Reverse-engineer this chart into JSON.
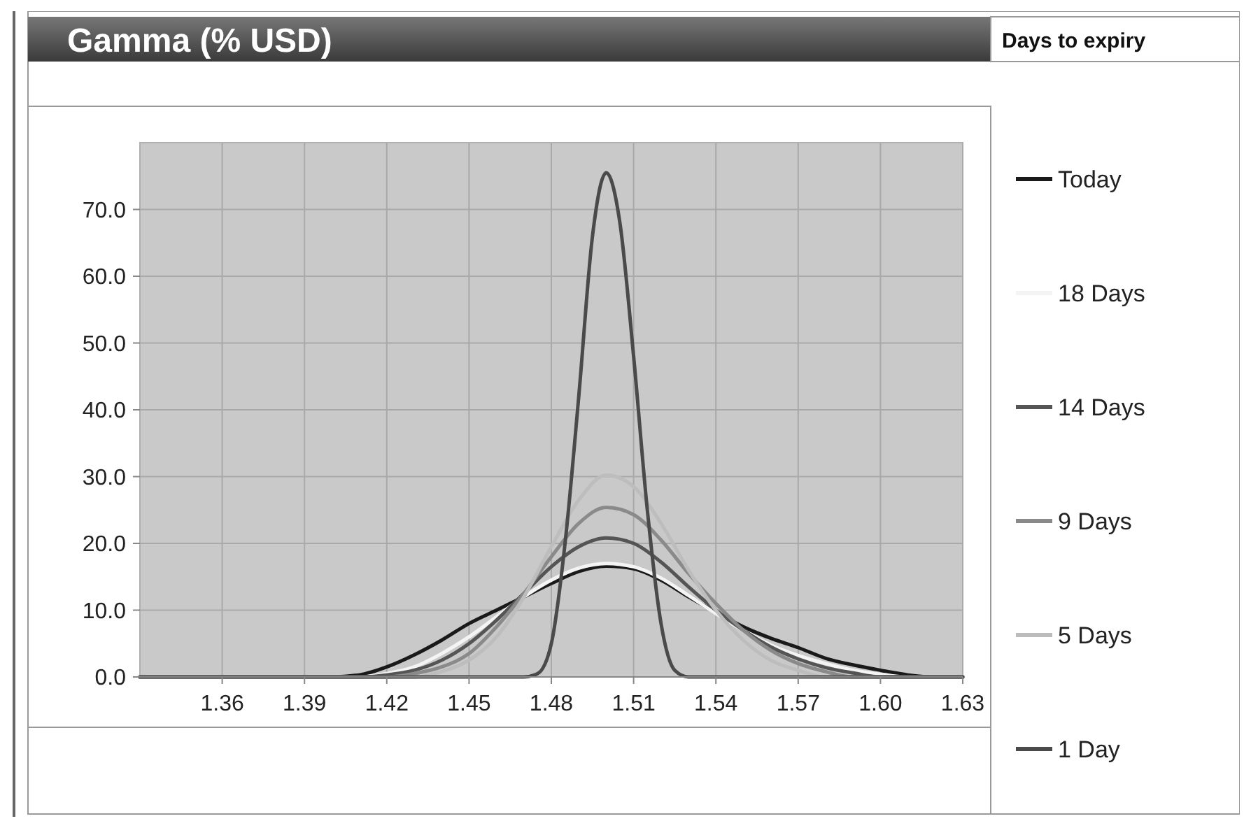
{
  "chart_data": {
    "type": "line",
    "title": "Gamma (% USD)",
    "legend_title": "Days to expiry",
    "xlim": [
      1.33,
      1.63
    ],
    "ylim": [
      0,
      80
    ],
    "xticks": [
      1.36,
      1.39,
      1.42,
      1.45,
      1.48,
      1.51,
      1.54,
      1.57,
      {
        "value": 1.6,
        "label": "1.60"
      },
      1.63
    ],
    "yticks": [
      {
        "value": 0,
        "label": "0.0"
      },
      {
        "value": 10,
        "label": "10.0"
      },
      {
        "value": 20,
        "label": "20.0"
      },
      {
        "value": 30,
        "label": "30.0"
      },
      {
        "value": 40,
        "label": "40.0"
      },
      {
        "value": 50,
        "label": "50.0"
      },
      {
        "value": 60,
        "label": "60.0"
      },
      {
        "value": 70,
        "label": "70.0"
      }
    ],
    "grid": true,
    "legend": "right",
    "marker": "none",
    "line_style": "solid",
    "series": [
      {
        "name": "Today",
        "color": "#1a1a1a",
        "x": [
          1.33,
          1.4,
          1.41,
          1.42,
          1.43,
          1.44,
          1.45,
          1.46,
          1.47,
          1.48,
          1.49,
          1.5,
          1.51,
          1.52,
          1.53,
          1.54,
          1.55,
          1.56,
          1.57,
          1.58,
          1.59,
          1.6,
          1.61,
          1.62,
          1.63
        ],
        "values": [
          0,
          0,
          0.3,
          1.5,
          3.3,
          5.5,
          8,
          10,
          12,
          14,
          15.8,
          16.6,
          16.2,
          14.5,
          12,
          9.7,
          7.5,
          5.8,
          4.4,
          2.8,
          1.8,
          1,
          0.3,
          0,
          0
        ]
      },
      {
        "name": "18 Days",
        "color": "#f4f4f4",
        "x": [
          1.33,
          1.41,
          1.42,
          1.43,
          1.44,
          1.45,
          1.46,
          1.47,
          1.48,
          1.49,
          1.5,
          1.51,
          1.52,
          1.53,
          1.54,
          1.55,
          1.56,
          1.57,
          1.58,
          1.59,
          1.6,
          1.61,
          1.63
        ],
        "values": [
          0,
          0,
          0.5,
          1.5,
          3.5,
          6,
          9,
          12,
          14.5,
          16.3,
          17,
          16.5,
          14.8,
          12.2,
          9.5,
          7,
          4.8,
          3.2,
          2,
          1,
          0.4,
          0,
          0
        ]
      },
      {
        "name": "14 Days",
        "color": "#555555",
        "x": [
          1.33,
          1.41,
          1.42,
          1.43,
          1.44,
          1.45,
          1.46,
          1.47,
          1.48,
          1.49,
          1.5,
          1.51,
          1.52,
          1.53,
          1.54,
          1.55,
          1.56,
          1.57,
          1.58,
          1.59,
          1.6,
          1.63
        ],
        "values": [
          0,
          0,
          0.3,
          1,
          2.5,
          5,
          8.5,
          12.5,
          16.5,
          19.5,
          20.8,
          20,
          17.2,
          13.5,
          10,
          7,
          4.5,
          2.7,
          1.4,
          0.6,
          0,
          0
        ]
      },
      {
        "name": "9 Days",
        "color": "#8a8a8a",
        "x": [
          1.33,
          1.42,
          1.43,
          1.44,
          1.45,
          1.46,
          1.47,
          1.48,
          1.49,
          1.5,
          1.51,
          1.52,
          1.53,
          1.54,
          1.55,
          1.56,
          1.57,
          1.58,
          1.59,
          1.63
        ],
        "values": [
          0,
          0,
          0.5,
          1.5,
          3.5,
          7.5,
          12.5,
          18,
          23,
          25.4,
          24.3,
          20.5,
          15.5,
          11,
          7,
          4,
          2,
          0.8,
          0,
          0
        ]
      },
      {
        "name": "5 Days",
        "color": "#bdbdbd",
        "x": [
          1.33,
          1.43,
          1.44,
          1.45,
          1.46,
          1.47,
          1.48,
          1.49,
          1.5,
          1.51,
          1.52,
          1.53,
          1.54,
          1.55,
          1.56,
          1.57,
          1.58,
          1.63
        ],
        "values": [
          0,
          0,
          0.8,
          2.5,
          6,
          12,
          19.5,
          26.5,
          30.2,
          28.5,
          23,
          16,
          10,
          5.5,
          2.5,
          1,
          0,
          0
        ]
      },
      {
        "name": "1 Day",
        "color": "#4a4a4a",
        "x": [
          1.33,
          1.47,
          1.475,
          1.48,
          1.485,
          1.49,
          1.495,
          1.5,
          1.505,
          1.51,
          1.515,
          1.52,
          1.525,
          1.53,
          1.63
        ],
        "values": [
          0,
          0,
          0.5,
          5,
          20,
          42,
          66,
          75.5,
          68,
          48,
          25,
          8,
          1,
          0,
          0
        ]
      }
    ]
  }
}
